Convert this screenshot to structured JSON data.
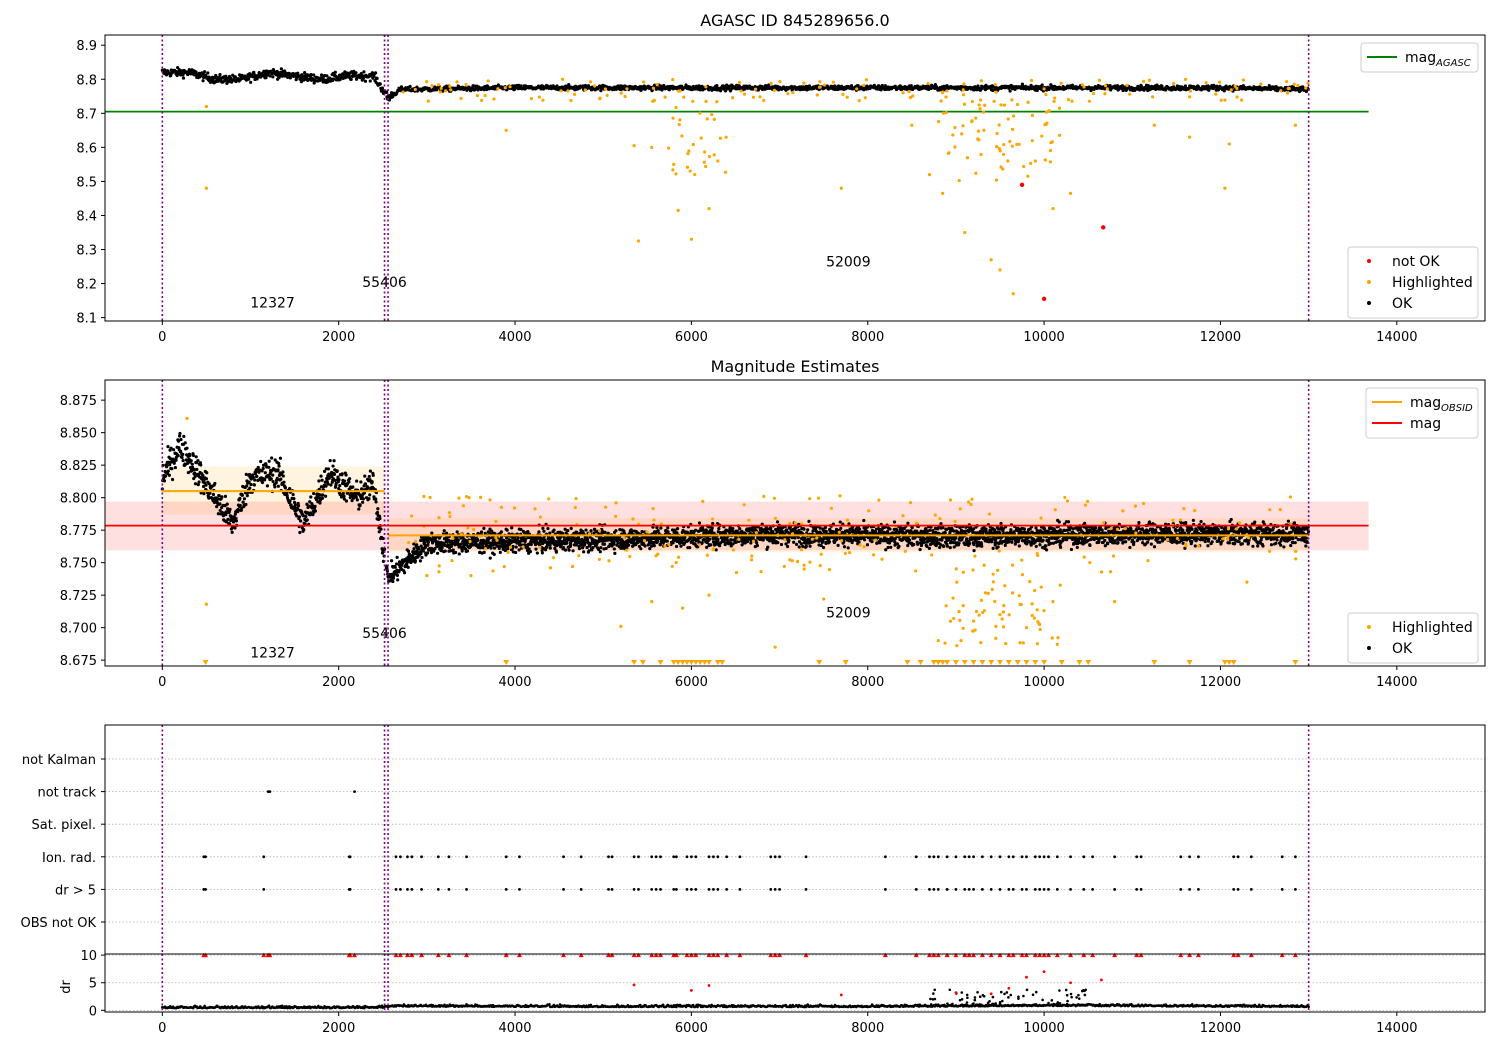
{
  "chart_data": [
    {
      "type": "scatter",
      "title": "AGASC ID 845289656.0",
      "xlabel": "",
      "ylabel": "",
      "xlim": [
        -650,
        15000
      ],
      "ylim": [
        8.09,
        8.93
      ],
      "xticks": [
        "0",
        "2000",
        "4000",
        "6000",
        "8000",
        "10000",
        "12000",
        "14000"
      ],
      "yticks": [
        "8.1",
        "8.2",
        "8.3",
        "8.4",
        "8.5",
        "8.6",
        "8.7",
        "8.8",
        "8.9"
      ],
      "hlines": [
        {
          "name": "mag",
          "sub": "AGASC",
          "y": 8.705,
          "color": "#008000",
          "x_range": [
            -650,
            13680
          ]
        }
      ],
      "vlines": [
        0,
        2520,
        2560,
        13000
      ],
      "annotations": [
        {
          "text": "12327",
          "x": 1250,
          "y": 8.13
        },
        {
          "text": "55406",
          "x": 2520,
          "y": 8.19
        },
        {
          "text": "52009",
          "x": 7780,
          "y": 8.25
        }
      ],
      "legends": [
        {
          "position": "upper-right",
          "entries": [
            {
              "label": "mag",
              "sub": "AGASC",
              "color": "#008000",
              "kind": "line"
            }
          ]
        },
        {
          "position": "lower-right",
          "entries": [
            {
              "label": "not OK",
              "color": "#ff0000",
              "kind": "dot"
            },
            {
              "label": "Highlighted",
              "color": "#ffa500",
              "kind": "dot"
            },
            {
              "label": "OK",
              "color": "#000000",
              "kind": "dot"
            }
          ]
        }
      ],
      "series": [
        {
          "name": "OK",
          "color": "#000000",
          "description_points": [
            [
              0,
              8.82
            ],
            [
              300,
              8.82
            ],
            [
              600,
              8.8
            ],
            [
              900,
              8.8
            ],
            [
              1200,
              8.82
            ],
            [
              1500,
              8.81
            ],
            [
              1800,
              8.8
            ],
            [
              2100,
              8.81
            ],
            [
              2400,
              8.81
            ],
            [
              2560,
              8.745
            ],
            [
              2700,
              8.77
            ],
            [
              4000,
              8.775
            ],
            [
              6000,
              8.775
            ],
            [
              8000,
              8.775
            ],
            [
              10000,
              8.775
            ],
            [
              12000,
              8.775
            ],
            [
              13000,
              8.77
            ]
          ]
        },
        {
          "name": "Highlighted",
          "color": "#ffa500",
          "points": [
            [
              500,
              8.72
            ],
            [
              500,
              8.48
            ],
            [
              3900,
              8.65
            ],
            [
              5350,
              8.605
            ],
            [
              5400,
              8.325
            ],
            [
              5550,
              8.6
            ],
            [
              5800,
              8.55
            ],
            [
              5850,
              8.415
            ],
            [
              6000,
              8.33
            ],
            [
              6200,
              8.42
            ],
            [
              6300,
              8.56
            ],
            [
              7700,
              8.48
            ],
            [
              8500,
              8.665
            ],
            [
              8700,
              8.52
            ],
            [
              8850,
              8.465
            ],
            [
              9100,
              8.35
            ],
            [
              9400,
              8.27
            ],
            [
              9500,
              8.24
            ],
            [
              9650,
              8.17
            ],
            [
              9900,
              8.56
            ],
            [
              10100,
              8.42
            ],
            [
              10300,
              8.465
            ],
            [
              11250,
              8.665
            ],
            [
              11650,
              8.63
            ],
            [
              12050,
              8.48
            ],
            [
              12100,
              8.61
            ],
            [
              12850,
              8.665
            ]
          ]
        },
        {
          "name": "not OK",
          "color": "#ff0000",
          "points": [
            [
              9750,
              8.49
            ],
            [
              10000,
              8.155
            ],
            [
              10670,
              8.365
            ]
          ]
        }
      ]
    },
    {
      "type": "scatter",
      "title": "Magnitude Estimates",
      "xlabel": "",
      "ylabel": "",
      "xlim": [
        -650,
        15000
      ],
      "ylim": [
        8.6705,
        8.8905
      ],
      "xticks": [
        "0",
        "2000",
        "4000",
        "6000",
        "8000",
        "10000",
        "12000",
        "14000"
      ],
      "yticks": [
        "8.675",
        "8.700",
        "8.725",
        "8.750",
        "8.775",
        "8.800",
        "8.825",
        "8.850",
        "8.875"
      ],
      "hlines": [
        {
          "name": "mag",
          "sub": "OBSID",
          "segments": [
            {
              "x": [
                0,
                2520
              ],
              "y": 8.805
            },
            {
              "x": [
                2560,
                13000
              ],
              "y": 8.771
            }
          ],
          "color": "#ffa500"
        },
        {
          "name": "mag",
          "y": 8.7785,
          "color": "#ff0000",
          "x_range": [
            -650,
            13680
          ]
        }
      ],
      "bands": [
        {
          "color": "#ffa500",
          "segments": [
            {
              "x": [
                0,
                2520
              ],
              "y": [
                8.787,
                8.824
              ]
            },
            {
              "x": [
                2560,
                13000
              ],
              "y": [
                8.758,
                8.784
              ]
            }
          ]
        },
        {
          "color": "#ff0000",
          "x": [
            -650,
            13680
          ],
          "y": [
            8.7595,
            8.797
          ]
        }
      ],
      "vlines": [
        0,
        2520,
        2560,
        13000
      ],
      "annotations": [
        {
          "text": "12327",
          "x": 1250,
          "y": 8.677
        },
        {
          "text": "55406",
          "x": 2520,
          "y": 8.692
        },
        {
          "text": "52009",
          "x": 7780,
          "y": 8.708
        }
      ],
      "legends": [
        {
          "position": "upper-right",
          "entries": [
            {
              "label": "mag",
              "sub": "OBSID",
              "color": "#ffa500",
              "kind": "line"
            },
            {
              "label": "mag",
              "color": "#ff0000",
              "kind": "line"
            }
          ]
        },
        {
          "position": "lower-right",
          "entries": [
            {
              "label": "Highlighted",
              "color": "#ffa500",
              "kind": "dot"
            },
            {
              "label": "OK",
              "color": "#000000",
              "kind": "dot"
            }
          ]
        }
      ],
      "series": [
        {
          "name": "OK",
          "color": "#000000",
          "description_points": [
            [
              0,
              8.815
            ],
            [
              200,
              8.84
            ],
            [
              500,
              8.81
            ],
            [
              800,
              8.78
            ],
            [
              1000,
              8.815
            ],
            [
              1300,
              8.82
            ],
            [
              1600,
              8.78
            ],
            [
              1900,
              8.82
            ],
            [
              2200,
              8.8
            ],
            [
              2400,
              8.81
            ],
            [
              2560,
              8.738
            ],
            [
              3000,
              8.765
            ],
            [
              5000,
              8.768
            ],
            [
              7000,
              8.772
            ],
            [
              9000,
              8.77
            ],
            [
              11000,
              8.772
            ],
            [
              13000,
              8.772
            ]
          ]
        },
        {
          "name": "Highlighted",
          "color": "#ffa500",
          "points": [
            [
              280,
              8.861
            ],
            [
              500,
              8.718
            ],
            [
              3000,
              8.74
            ],
            [
              3500,
              8.74
            ],
            [
              5200,
              8.701
            ],
            [
              5550,
              8.72
            ],
            [
              5900,
              8.715
            ],
            [
              6200,
              8.725
            ],
            [
              6950,
              8.685
            ],
            [
              7500,
              8.722
            ],
            [
              8800,
              8.69
            ],
            [
              9200,
              8.705
            ],
            [
              9500,
              8.71
            ],
            [
              9800,
              8.7
            ],
            [
              10100,
              8.72
            ],
            [
              10800,
              8.72
            ],
            [
              12300,
              8.735
            ]
          ]
        }
      ]
    },
    {
      "type": "scatter",
      "title": "",
      "xlabel": "",
      "ylabel": "",
      "xlim": [
        -650,
        15000
      ],
      "categories": [
        "not Kalman",
        "not track",
        "Sat. pixel.",
        "Ion. rad.",
        "dr > 5",
        "OBS not OK"
      ],
      "vlines": [
        0,
        2520,
        2560,
        13000
      ],
      "series": [
        {
          "name": "not track",
          "color": "#000000",
          "x": [
            1200,
            1220,
            2180
          ]
        },
        {
          "name": "Ion. rad.",
          "color": "#000000",
          "x": [
            470,
            490,
            1150,
            2120,
            2130,
            2650,
            2700,
            2780,
            2830,
            2940,
            3130,
            3250,
            3450,
            3900,
            4050,
            4550,
            4750,
            5060,
            5100,
            5350,
            5400,
            5550,
            5600,
            5650,
            5800,
            5830,
            5950,
            6000,
            6050,
            6200,
            6250,
            6300,
            6400,
            6550,
            6900,
            6950,
            7000,
            7300,
            8200,
            8550,
            8700,
            8750,
            8800,
            8900,
            9000,
            9100,
            9150,
            9200,
            9300,
            9400,
            9500,
            9600,
            9650,
            9750,
            9800,
            9900,
            9950,
            10000,
            10050,
            10150,
            10300,
            10450,
            10550,
            10800,
            11050,
            11100,
            11550,
            11650,
            11750,
            12150,
            12200,
            12350,
            12700,
            12850
          ]
        },
        {
          "name": "dr > 5",
          "color": "#000000",
          "x": [
            470,
            490,
            1150,
            2120,
            2130,
            2650,
            2700,
            2780,
            2830,
            2940,
            3130,
            3250,
            3450,
            3900,
            4050,
            4550,
            4750,
            5060,
            5100,
            5350,
            5400,
            5550,
            5600,
            5650,
            5800,
            5830,
            5950,
            6000,
            6050,
            6200,
            6250,
            6300,
            6400,
            6550,
            6900,
            6950,
            7000,
            7300,
            8200,
            8550,
            8700,
            8750,
            8800,
            8900,
            9000,
            9100,
            9150,
            9200,
            9300,
            9400,
            9500,
            9600,
            9650,
            9750,
            9800,
            9900,
            9950,
            10000,
            10050,
            10150,
            10300,
            10450,
            10550,
            10800,
            11050,
            11100,
            11550,
            11650,
            11750,
            12150,
            12200,
            12350,
            12700,
            12850
          ]
        }
      ]
    },
    {
      "type": "scatter",
      "title": "",
      "xlabel": "",
      "ylabel": "dr",
      "xlim": [
        -650,
        15000
      ],
      "ylim": [
        -0.3,
        10.2
      ],
      "xticks": [
        "0",
        "2000",
        "4000",
        "6000",
        "8000",
        "10000",
        "12000",
        "14000"
      ],
      "yticks": [
        "0",
        "5",
        "10"
      ],
      "vlines": [
        0,
        2520,
        2560,
        13000
      ],
      "series": [
        {
          "name": "OK",
          "color": "#000000",
          "description_points": [
            [
              0,
              0.4
            ],
            [
              2500,
              0.4
            ],
            [
              2600,
              0.7
            ],
            [
              5000,
              0.6
            ],
            [
              8000,
              0.6
            ],
            [
              10000,
              0.8
            ],
            [
              13000,
              0.6
            ]
          ]
        },
        {
          "name": "capped",
          "color": "#ff0000",
          "y": 10,
          "x": [
            470,
            490,
            1150,
            1200,
            1220,
            2120,
            2130,
            2180,
            2650,
            2700,
            2780,
            2830,
            2940,
            3130,
            3250,
            3450,
            3900,
            4050,
            4550,
            4750,
            5060,
            5100,
            5350,
            5400,
            5550,
            5600,
            5650,
            5800,
            5830,
            5950,
            6000,
            6050,
            6200,
            6250,
            6300,
            6400,
            6550,
            6900,
            6950,
            7000,
            7300,
            8200,
            8550,
            8700,
            8750,
            8800,
            8900,
            9000,
            9100,
            9150,
            9200,
            9300,
            9400,
            9500,
            9600,
            9650,
            9750,
            9800,
            9900,
            9950,
            10000,
            10050,
            10150,
            10300,
            10450,
            10550,
            10800,
            11050,
            11100,
            11550,
            11650,
            11750,
            12150,
            12200,
            12350,
            12700,
            12850
          ]
        },
        {
          "name": "large",
          "color": "#ff0000",
          "points": [
            [
              5350,
              4.6
            ],
            [
              6000,
              3.6
            ],
            [
              6200,
              4.5
            ],
            [
              7700,
              2.8
            ],
            [
              9000,
              3.2
            ],
            [
              9400,
              3.0
            ],
            [
              9600,
              4.0
            ],
            [
              9800,
              6.0
            ],
            [
              10000,
              7.0
            ],
            [
              10300,
              5.0
            ],
            [
              10650,
              5.5
            ]
          ]
        }
      ]
    }
  ]
}
